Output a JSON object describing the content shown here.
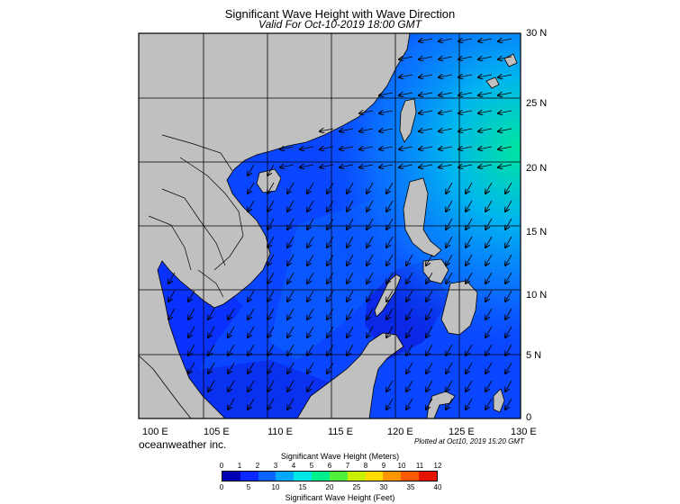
{
  "title": "Significant Wave Height with Wave Direction",
  "subtitle": "Valid For Oct-10-2019 18:00 GMT",
  "credit": "oceanweather inc.",
  "plotted": "Plotted at Oct10, 2019 15:20 GMT",
  "map": {
    "region": "South China Sea / Western Pacific",
    "lon_range": [
      100,
      130
    ],
    "lat_range": [
      0,
      30
    ],
    "lat_labels": [
      "30 N",
      "25 N",
      "20 N",
      "15 N",
      "10 N",
      "5 N",
      "0"
    ],
    "lon_labels": [
      "100 E",
      "105 E",
      "110 E",
      "115 E",
      "120 E",
      "125 E",
      "130 E"
    ],
    "land_color": "#c0c0c0",
    "arrow_direction": "southwest"
  },
  "colorbar": {
    "meters_title": "Significant Wave Height (Meters)",
    "feet_title": "Significant Wave Height (Feet)",
    "meters_ticks": [
      "0",
      "1",
      "2",
      "3",
      "4",
      "5",
      "6",
      "7",
      "8",
      "9",
      "10",
      "11",
      "12"
    ],
    "feet_ticks": [
      "0",
      "5",
      "10",
      "15",
      "20",
      "25",
      "30",
      "35",
      "40"
    ],
    "colors": [
      "#0000b4",
      "#0a28ff",
      "#0a64ff",
      "#00a8ff",
      "#00e6e6",
      "#00f08c",
      "#50f03c",
      "#c8f000",
      "#ffdc00",
      "#ff9600",
      "#ff5a00",
      "#e61400"
    ]
  }
}
